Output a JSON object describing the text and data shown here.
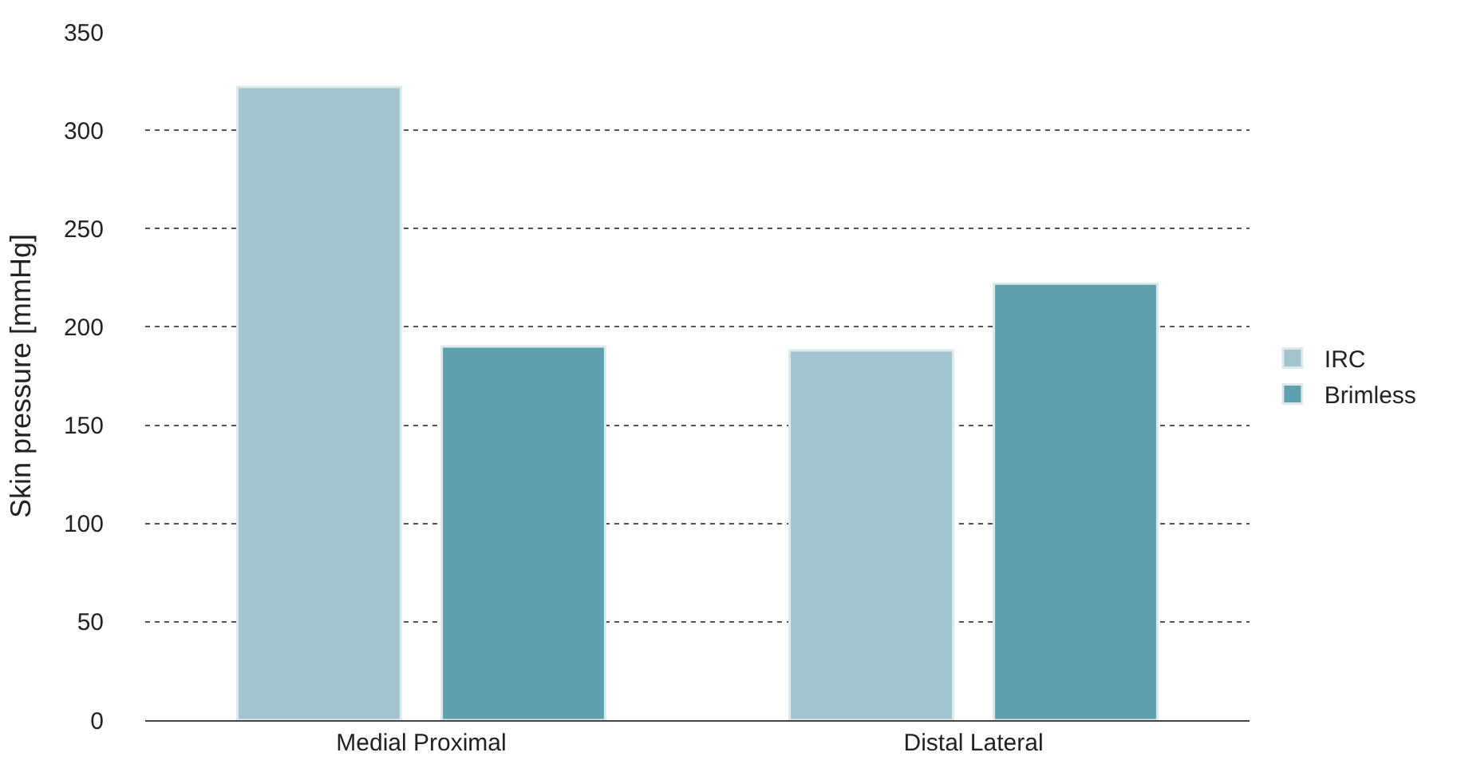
{
  "chart_data": {
    "type": "bar",
    "ylabel": "Skin pressure [mmHg]",
    "categories": [
      "Medial Proximal",
      "Distal Lateral"
    ],
    "series": [
      {
        "name": "IRC",
        "color": "#a2c4cc",
        "values": [
          322,
          188
        ]
      },
      {
        "name": "Brimless",
        "color": "#5fa0ae",
        "values": [
          190,
          222
        ]
      }
    ],
    "ylim": [
      0,
      350
    ],
    "yticks": [
      0,
      50,
      100,
      150,
      200,
      250,
      300,
      350
    ],
    "grid": "y",
    "legend": "right"
  }
}
